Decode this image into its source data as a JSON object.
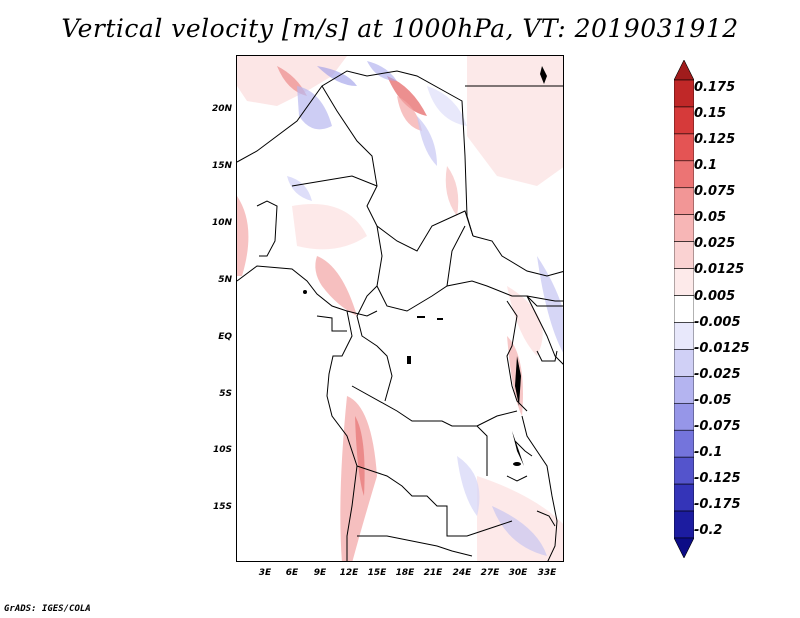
{
  "title": "Vertical velocity [m/s] at 1000hPa, VT: 2019031912",
  "footer": "GrADS: IGES/COLA",
  "map": {
    "lat_ticks": [
      "20N",
      "15N",
      "10N",
      "5N",
      "EQ",
      "5S",
      "10S",
      "15S"
    ],
    "lon_ticks": [
      "3E",
      "6E",
      "9E",
      "12E",
      "15E",
      "18E",
      "21E",
      "24E",
      "27E",
      "30E",
      "33E"
    ]
  },
  "colorbar": {
    "labels": [
      "0.175",
      "0.15",
      "0.125",
      "0.1",
      "0.075",
      "0.05",
      "0.025",
      "0.0125",
      "0.005",
      "-0.005",
      "-0.0125",
      "-0.025",
      "-0.05",
      "-0.075",
      "-0.1",
      "-0.125",
      "-0.175",
      "-0.2"
    ],
    "colors": [
      "#a01c1c",
      "#c02828",
      "#d63a3a",
      "#e45454",
      "#ec7474",
      "#f29696",
      "#f7b6b6",
      "#fad2d2",
      "#fdeaea",
      "#ffffff",
      "#e8e8fb",
      "#d0d0f6",
      "#b4b4f0",
      "#9696e8",
      "#7474dc",
      "#5454cc",
      "#3434b8",
      "#1c1ca0",
      "#0c0c86"
    ]
  }
}
